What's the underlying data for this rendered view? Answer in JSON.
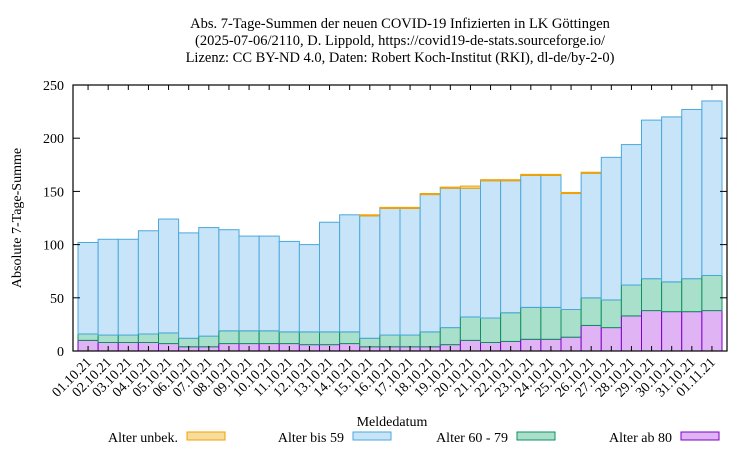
{
  "chart_data": {
    "type": "bar",
    "stacked": true,
    "title": [
      "Abs. 7-Tage-Summen der neuen COVID-19 Infizierten in LK Göttingen",
      "(2025-07-06/2110, D. Lippold, https://covid19-de-stats.sourceforge.io/",
      "Lizenz: CC BY-ND 4.0, Daten: Robert Koch-Institut (RKI), dl-de/by-2-0)"
    ],
    "xlabel": "Meldedatum",
    "ylabel": "Absolute 7-Tage-Summe",
    "ylim": [
      0,
      250
    ],
    "yticks": [
      0,
      50,
      100,
      150,
      200,
      250
    ],
    "grid": false,
    "legend_position": "bottom",
    "categories": [
      "01.10.21",
      "02.10.21",
      "03.10.21",
      "04.10.21",
      "05.10.21",
      "06.10.21",
      "07.10.21",
      "08.10.21",
      "09.10.21",
      "10.10.21",
      "11.10.21",
      "12.10.21",
      "13.10.21",
      "14.10.21",
      "15.10.21",
      "16.10.21",
      "17.10.21",
      "18.10.21",
      "19.10.21",
      "20.10.21",
      "21.10.21",
      "22.10.21",
      "23.10.21",
      "24.10.21",
      "25.10.21",
      "26.10.21",
      "27.10.21",
      "28.10.21",
      "29.10.21",
      "30.10.21",
      "31.10.21",
      "01.11.21"
    ],
    "series": [
      {
        "name": "Alter ab 80",
        "fill": "#e0b3f5",
        "stroke": "#7d00c8",
        "values": [
          10,
          8,
          8,
          8,
          7,
          4,
          4,
          7,
          7,
          7,
          7,
          6,
          6,
          7,
          4,
          4,
          4,
          4,
          6,
          10,
          8,
          9,
          11,
          11,
          13,
          24,
          22,
          33,
          38,
          37,
          37,
          38
        ]
      },
      {
        "name": "Alter 60 - 79",
        "fill": "#a8e0cc",
        "stroke": "#109060",
        "values": [
          6,
          7,
          7,
          8,
          10,
          8,
          10,
          12,
          12,
          12,
          11,
          12,
          12,
          11,
          8,
          11,
          11,
          14,
          16,
          22,
          23,
          27,
          30,
          30,
          26,
          26,
          26,
          29,
          30,
          28,
          31,
          33
        ]
      },
      {
        "name": "Alter bis 59",
        "fill": "#c8e4f8",
        "stroke": "#4aa8dc",
        "values": [
          86,
          90,
          90,
          97,
          107,
          99,
          102,
          95,
          89,
          89,
          85,
          82,
          103,
          110,
          115,
          119,
          119,
          129,
          131,
          121,
          129,
          124,
          124,
          124,
          109,
          117,
          134,
          132,
          149,
          155,
          159,
          164
        ]
      },
      {
        "name": "Alter unbek.",
        "fill": "#f8dc9c",
        "stroke": "#f0a000",
        "values": [
          0,
          0,
          0,
          0,
          0,
          0,
          0,
          0,
          0,
          0,
          0,
          0,
          0,
          0,
          1,
          1,
          1,
          1,
          1,
          2,
          1,
          1,
          1,
          1,
          1,
          1,
          0,
          0,
          0,
          0,
          0,
          0
        ]
      }
    ],
    "legend_order": [
      "Alter unbek.",
      "Alter bis 59",
      "Alter 60 - 79",
      "Alter ab 80"
    ]
  }
}
